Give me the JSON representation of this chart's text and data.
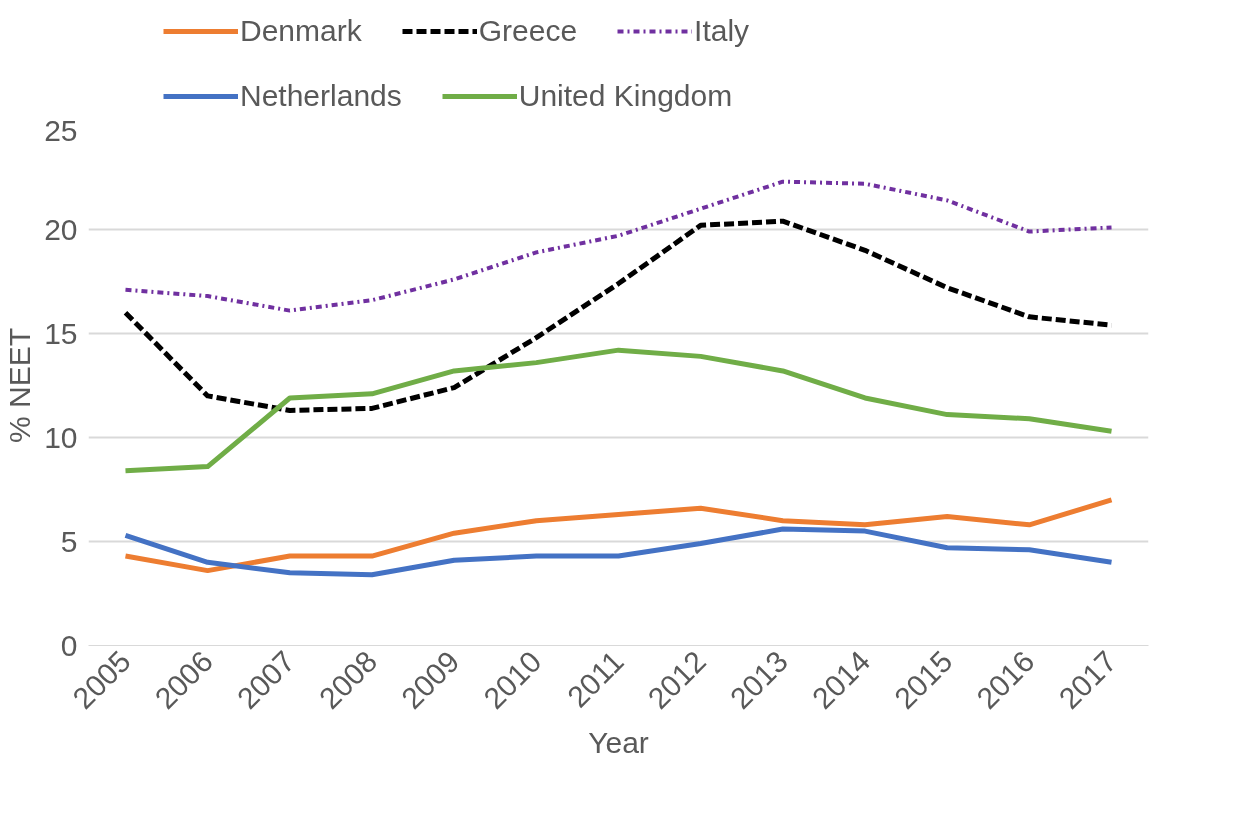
{
  "chart_data": {
    "type": "line",
    "xlabel": "Year",
    "ylabel": "% NEET",
    "categories": [
      "2005",
      "2006",
      "2007",
      "2008",
      "2009",
      "2010",
      "2011",
      "2012",
      "2013",
      "2014",
      "2015",
      "2016",
      "2017"
    ],
    "series": [
      {
        "name": "Denmark",
        "color": "#ed7d31",
        "line_style": "solid",
        "values": [
          4.3,
          3.6,
          4.3,
          4.3,
          5.4,
          6.0,
          6.3,
          6.6,
          6.0,
          5.8,
          6.2,
          5.8,
          7.0
        ]
      },
      {
        "name": "Greece",
        "color": "#000000",
        "line_style": "dashed",
        "values": [
          16.0,
          12.0,
          11.3,
          11.4,
          12.4,
          14.8,
          17.4,
          20.2,
          20.4,
          19.0,
          17.2,
          15.8,
          15.4
        ]
      },
      {
        "name": "Italy",
        "color": "#7030a0",
        "line_style": "dashdot",
        "values": [
          17.1,
          16.8,
          16.1,
          16.6,
          17.6,
          18.9,
          19.7,
          21.0,
          22.3,
          22.2,
          21.4,
          19.9,
          20.1
        ]
      },
      {
        "name": "Netherlands",
        "color": "#4472c4",
        "line_style": "solid",
        "values": [
          5.3,
          4.0,
          3.5,
          3.4,
          4.1,
          4.3,
          4.3,
          4.9,
          5.6,
          5.5,
          4.7,
          4.6,
          4.0
        ]
      },
      {
        "name": "United Kingdom",
        "color": "#70ad47",
        "line_style": "solid",
        "values": [
          8.4,
          8.6,
          11.9,
          12.1,
          13.2,
          13.6,
          14.2,
          13.9,
          13.2,
          11.9,
          11.1,
          10.9,
          10.3
        ]
      }
    ],
    "ylim": [
      0,
      25
    ],
    "yticks": [
      0,
      5,
      10,
      15,
      20,
      25
    ],
    "grid": "y",
    "legend": "top"
  }
}
